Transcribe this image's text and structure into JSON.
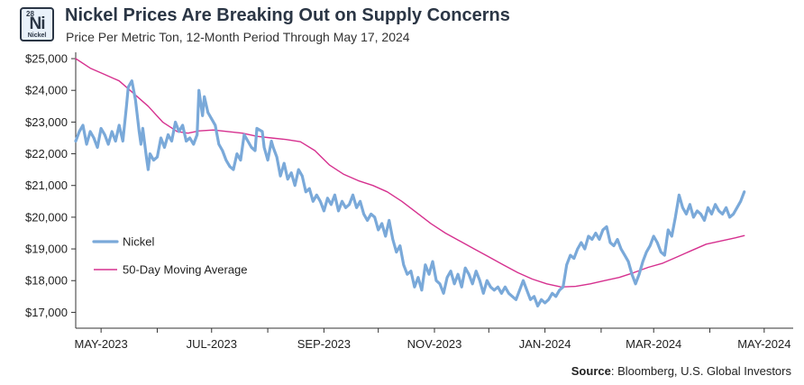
{
  "badge": {
    "number": "28",
    "symbol": "Ni",
    "name": "Nickel"
  },
  "title": "Nickel Prices Are Breaking Out on Supply Concerns",
  "subtitle": "Price Per Metric Ton, 12-Month Period Through May 17, 2024",
  "source": {
    "label": "Source",
    "text": ": Bloomberg, U.S. Global Investors"
  },
  "chart_data": {
    "type": "line",
    "x_unit": "days since 2023-04-17",
    "xlim": [
      0,
      396
    ],
    "ylim": [
      16500,
      25200
    ],
    "y_ticks": [
      {
        "value": 17000,
        "label": "$17,000"
      },
      {
        "value": 18000,
        "label": "$18,000"
      },
      {
        "value": 19000,
        "label": "$19,000"
      },
      {
        "value": 20000,
        "label": "$20,000"
      },
      {
        "value": 21000,
        "label": "$21,000"
      },
      {
        "value": 22000,
        "label": "$22,000"
      },
      {
        "value": 23000,
        "label": "$23,000"
      },
      {
        "value": 24000,
        "label": "$24,000"
      },
      {
        "value": 25000,
        "label": "$25,000"
      }
    ],
    "x_ticks": [
      {
        "value": 14,
        "label": "MAY-2023"
      },
      {
        "value": 45,
        "label": ""
      },
      {
        "value": 75,
        "label": "JUL-2023"
      },
      {
        "value": 106,
        "label": ""
      },
      {
        "value": 137,
        "label": "SEP-2023"
      },
      {
        "value": 167,
        "label": ""
      },
      {
        "value": 198,
        "label": "NOV-2023"
      },
      {
        "value": 228,
        "label": ""
      },
      {
        "value": 259,
        "label": "JAN-2024"
      },
      {
        "value": 290,
        "label": ""
      },
      {
        "value": 319,
        "label": "MAR-2024"
      },
      {
        "value": 350,
        "label": ""
      },
      {
        "value": 380,
        "label": "MAY-2024"
      }
    ],
    "legend_position": "left-middle",
    "series": [
      {
        "name": "Nickel",
        "color": "#7aa9d9",
        "points": [
          [
            0,
            22400
          ],
          [
            2,
            22700
          ],
          [
            4,
            22900
          ],
          [
            6,
            22300
          ],
          [
            8,
            22700
          ],
          [
            10,
            22500
          ],
          [
            12,
            22200
          ],
          [
            14,
            22800
          ],
          [
            16,
            22600
          ],
          [
            18,
            22300
          ],
          [
            20,
            22700
          ],
          [
            22,
            22400
          ],
          [
            24,
            22900
          ],
          [
            26,
            22400
          ],
          [
            28,
            23500
          ],
          [
            29,
            24100
          ],
          [
            31,
            24300
          ],
          [
            33,
            23700
          ],
          [
            35,
            22700
          ],
          [
            36,
            22300
          ],
          [
            37,
            22800
          ],
          [
            39,
            21900
          ],
          [
            40,
            21500
          ],
          [
            41,
            22000
          ],
          [
            43,
            21800
          ],
          [
            45,
            21900
          ],
          [
            47,
            22500
          ],
          [
            49,
            22200
          ],
          [
            51,
            22600
          ],
          [
            53,
            22400
          ],
          [
            55,
            23000
          ],
          [
            57,
            22700
          ],
          [
            59,
            22900
          ],
          [
            61,
            22400
          ],
          [
            63,
            22500
          ],
          [
            65,
            22300
          ],
          [
            67,
            22600
          ],
          [
            68,
            24000
          ],
          [
            70,
            23200
          ],
          [
            71,
            23800
          ],
          [
            73,
            23300
          ],
          [
            75,
            23100
          ],
          [
            77,
            22900
          ],
          [
            79,
            22300
          ],
          [
            81,
            22100
          ],
          [
            83,
            21800
          ],
          [
            85,
            21600
          ],
          [
            87,
            21500
          ],
          [
            89,
            22000
          ],
          [
            91,
            21800
          ],
          [
            93,
            22600
          ],
          [
            95,
            22400
          ],
          [
            97,
            22200
          ],
          [
            99,
            22100
          ],
          [
            100,
            22800
          ],
          [
            103,
            22700
          ],
          [
            104,
            22200
          ],
          [
            106,
            21800
          ],
          [
            108,
            22400
          ],
          [
            109,
            22200
          ],
          [
            111,
            21900
          ],
          [
            113,
            21300
          ],
          [
            115,
            21700
          ],
          [
            117,
            21200
          ],
          [
            119,
            21400
          ],
          [
            121,
            21000
          ],
          [
            123,
            21500
          ],
          [
            125,
            21300
          ],
          [
            127,
            20800
          ],
          [
            129,
            20900
          ],
          [
            131,
            20500
          ],
          [
            133,
            20700
          ],
          [
            135,
            20500
          ],
          [
            137,
            20200
          ],
          [
            139,
            20600
          ],
          [
            141,
            20400
          ],
          [
            143,
            20700
          ],
          [
            145,
            20200
          ],
          [
            147,
            20500
          ],
          [
            149,
            20300
          ],
          [
            151,
            20400
          ],
          [
            153,
            20700
          ],
          [
            155,
            20300
          ],
          [
            157,
            20500
          ],
          [
            159,
            20100
          ],
          [
            161,
            19900
          ],
          [
            163,
            20100
          ],
          [
            165,
            20000
          ],
          [
            167,
            19600
          ],
          [
            169,
            19800
          ],
          [
            171,
            19400
          ],
          [
            173,
            19900
          ],
          [
            175,
            19300
          ],
          [
            177,
            18900
          ],
          [
            179,
            19100
          ],
          [
            181,
            18500
          ],
          [
            183,
            18200
          ],
          [
            185,
            18300
          ],
          [
            187,
            17800
          ],
          [
            189,
            18100
          ],
          [
            191,
            17700
          ],
          [
            193,
            18500
          ],
          [
            195,
            18200
          ],
          [
            197,
            18600
          ],
          [
            199,
            18000
          ],
          [
            201,
            17900
          ],
          [
            203,
            17600
          ],
          [
            205,
            18100
          ],
          [
            207,
            18300
          ],
          [
            209,
            17900
          ],
          [
            211,
            18200
          ],
          [
            213,
            17800
          ],
          [
            215,
            18400
          ],
          [
            217,
            18200
          ],
          [
            219,
            17900
          ],
          [
            221,
            18300
          ],
          [
            223,
            18000
          ],
          [
            225,
            17600
          ],
          [
            227,
            18000
          ],
          [
            229,
            17800
          ],
          [
            231,
            17700
          ],
          [
            233,
            17800
          ],
          [
            235,
            17600
          ],
          [
            237,
            17800
          ],
          [
            239,
            17600
          ],
          [
            241,
            17500
          ],
          [
            243,
            17400
          ],
          [
            245,
            17700
          ],
          [
            247,
            18000
          ],
          [
            249,
            17700
          ],
          [
            251,
            17400
          ],
          [
            253,
            17500
          ],
          [
            255,
            17200
          ],
          [
            257,
            17400
          ],
          [
            259,
            17300
          ],
          [
            261,
            17400
          ],
          [
            263,
            17600
          ],
          [
            265,
            17500
          ],
          [
            267,
            17700
          ],
          [
            269,
            17800
          ],
          [
            271,
            18500
          ],
          [
            273,
            18800
          ],
          [
            275,
            18700
          ],
          [
            277,
            19000
          ],
          [
            279,
            19200
          ],
          [
            281,
            19000
          ],
          [
            283,
            19400
          ],
          [
            285,
            19300
          ],
          [
            287,
            19500
          ],
          [
            289,
            19300
          ],
          [
            291,
            19600
          ],
          [
            293,
            19700
          ],
          [
            295,
            19200
          ],
          [
            297,
            19100
          ],
          [
            299,
            19300
          ],
          [
            301,
            19000
          ],
          [
            303,
            18800
          ],
          [
            305,
            18600
          ],
          [
            307,
            18200
          ],
          [
            309,
            17900
          ],
          [
            311,
            18200
          ],
          [
            313,
            18600
          ],
          [
            315,
            18900
          ],
          [
            317,
            19100
          ],
          [
            319,
            19400
          ],
          [
            321,
            19200
          ],
          [
            323,
            18900
          ],
          [
            325,
            18800
          ],
          [
            327,
            19600
          ],
          [
            329,
            19400
          ],
          [
            331,
            20000
          ],
          [
            333,
            20700
          ],
          [
            335,
            20300
          ],
          [
            337,
            20100
          ],
          [
            339,
            20400
          ],
          [
            341,
            20000
          ],
          [
            343,
            20200
          ],
          [
            345,
            20100
          ],
          [
            347,
            19900
          ],
          [
            349,
            20300
          ],
          [
            351,
            20100
          ],
          [
            353,
            20400
          ],
          [
            355,
            20200
          ],
          [
            357,
            20100
          ],
          [
            359,
            20300
          ],
          [
            361,
            20000
          ],
          [
            363,
            20100
          ],
          [
            365,
            20300
          ],
          [
            367,
            20500
          ],
          [
            369,
            20800
          ]
        ]
      },
      {
        "name": "50-Day Moving Average",
        "color": "#d6318f",
        "points": [
          [
            0,
            25000
          ],
          [
            8,
            24700
          ],
          [
            16,
            24500
          ],
          [
            24,
            24300
          ],
          [
            32,
            23900
          ],
          [
            40,
            23500
          ],
          [
            48,
            23000
          ],
          [
            56,
            22700
          ],
          [
            62,
            22650
          ],
          [
            68,
            22720
          ],
          [
            76,
            22750
          ],
          [
            84,
            22700
          ],
          [
            92,
            22650
          ],
          [
            100,
            22550
          ],
          [
            108,
            22500
          ],
          [
            116,
            22450
          ],
          [
            124,
            22380
          ],
          [
            132,
            22100
          ],
          [
            140,
            21650
          ],
          [
            148,
            21350
          ],
          [
            156,
            21150
          ],
          [
            164,
            21000
          ],
          [
            172,
            20800
          ],
          [
            180,
            20500
          ],
          [
            188,
            20150
          ],
          [
            196,
            19800
          ],
          [
            204,
            19500
          ],
          [
            212,
            19250
          ],
          [
            220,
            19000
          ],
          [
            228,
            18750
          ],
          [
            236,
            18500
          ],
          [
            244,
            18250
          ],
          [
            252,
            18050
          ],
          [
            260,
            17900
          ],
          [
            268,
            17800
          ],
          [
            276,
            17820
          ],
          [
            284,
            17900
          ],
          [
            292,
            18000
          ],
          [
            300,
            18100
          ],
          [
            308,
            18250
          ],
          [
            316,
            18420
          ],
          [
            324,
            18550
          ],
          [
            332,
            18750
          ],
          [
            340,
            18950
          ],
          [
            348,
            19150
          ],
          [
            356,
            19250
          ],
          [
            364,
            19350
          ],
          [
            369,
            19420
          ]
        ]
      }
    ]
  }
}
